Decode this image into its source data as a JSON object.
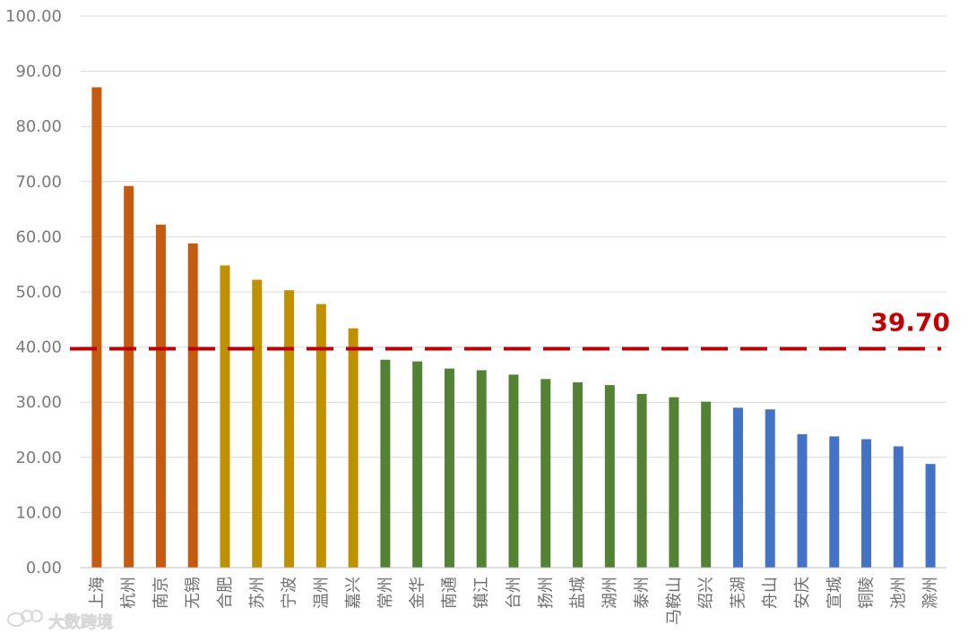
{
  "chart_data": {
    "type": "bar",
    "categories": [
      "上海",
      "杭州",
      "南京",
      "无锡",
      "合肥",
      "苏州",
      "宁波",
      "温州",
      "嘉兴",
      "常州",
      "金华",
      "南通",
      "镇江",
      "台州",
      "扬州",
      "盐城",
      "湖州",
      "泰州",
      "马鞍山",
      "绍兴",
      "芜湖",
      "舟山",
      "安庆",
      "宣城",
      "铜陵",
      "池州",
      "滁州"
    ],
    "values": [
      87.1,
      69.2,
      62.2,
      58.8,
      54.8,
      52.2,
      50.3,
      47.8,
      43.4,
      37.7,
      37.4,
      36.1,
      35.8,
      35.0,
      34.2,
      33.6,
      33.1,
      31.5,
      30.9,
      30.1,
      29.0,
      28.7,
      24.2,
      23.8,
      23.3,
      22.0,
      18.8
    ],
    "colors": [
      "#c55a11",
      "#c55a11",
      "#c55a11",
      "#c55a11",
      "#bf9000",
      "#bf9000",
      "#bf9000",
      "#bf9000",
      "#bf9000",
      "#548235",
      "#548235",
      "#548235",
      "#548235",
      "#548235",
      "#548235",
      "#548235",
      "#548235",
      "#548235",
      "#548235",
      "#548235",
      "#4472c4",
      "#4472c4",
      "#4472c4",
      "#4472c4",
      "#4472c4",
      "#4472c4",
      "#4472c4"
    ],
    "ylim": [
      0,
      100
    ],
    "yticks": [
      "0.00",
      "10.00",
      "20.00",
      "30.00",
      "40.00",
      "50.00",
      "60.00",
      "70.00",
      "80.00",
      "90.00",
      "100.00"
    ],
    "reference_line": {
      "value": 39.7,
      "label": "39.70",
      "color": "#c00000"
    },
    "title": "",
    "xlabel": "",
    "ylabel": "",
    "grid": true,
    "legend": "none"
  },
  "watermark": {
    "text": "大数跨境",
    "icon": "weibo-icon"
  }
}
